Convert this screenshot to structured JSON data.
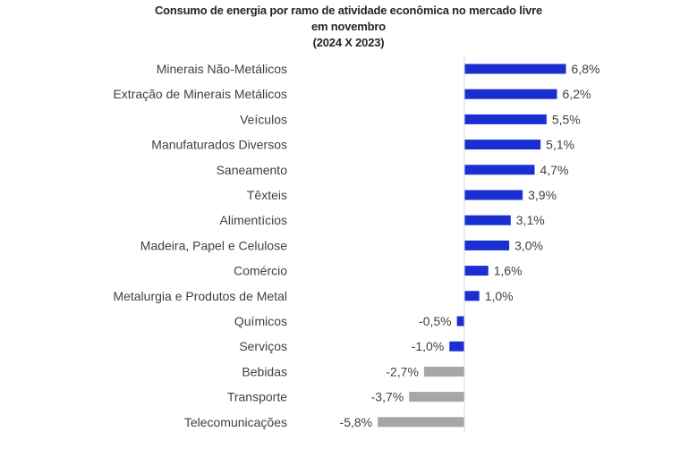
{
  "chart_data": {
    "type": "bar",
    "orientation": "horizontal",
    "title_lines": [
      "Consumo de energia por ramo de atividade econômica no mercado livre",
      "em novembro",
      "(2024 X 2023)"
    ],
    "categories": [
      "Minerais Não-Metálicos",
      "Extração de Minerais Metálicos",
      "Veículos",
      "Manufaturados Diversos",
      "Saneamento",
      "Têxteis",
      "Alimentícios",
      "Madeira, Papel e Celulose",
      "Comércio",
      "Metalurgia e Produtos de Metal",
      "Químicos",
      "Serviços",
      "Bebidas",
      "Transporte",
      "Telecomunicações"
    ],
    "values": [
      6.8,
      6.2,
      5.5,
      5.1,
      4.7,
      3.9,
      3.1,
      3.0,
      1.6,
      1.0,
      -0.5,
      -1.0,
      -2.7,
      -3.7,
      -5.8
    ],
    "data_labels": [
      "6,8%",
      "6,2%",
      "5,5%",
      "5,1%",
      "4,7%",
      "3,9%",
      "3,1%",
      "3,0%",
      "1,6%",
      "1,0%",
      "-0,5%",
      "-1,0%",
      "-2,7%",
      "-3,7%",
      "-5,8%"
    ],
    "bar_colors": [
      "#1a2fd1",
      "#1a2fd1",
      "#1a2fd1",
      "#1a2fd1",
      "#1a2fd1",
      "#1a2fd1",
      "#1a2fd1",
      "#1a2fd1",
      "#1a2fd1",
      "#1a2fd1",
      "#1a2fd1",
      "#1a2fd1",
      "#a6a6a6",
      "#a6a6a6",
      "#a6a6a6"
    ],
    "axis_color": "#d9d9d9",
    "xlim": [
      -5.8,
      6.8
    ],
    "grid": false,
    "legend": "none"
  }
}
